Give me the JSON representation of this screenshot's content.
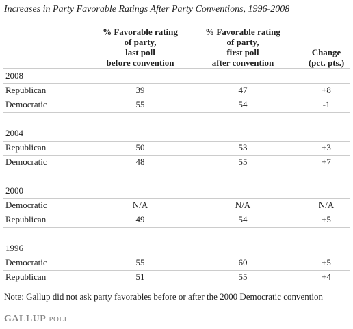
{
  "header": {
    "title": "Increases in Party Favorable Ratings After Party Conventions, 1996-2008"
  },
  "table": {
    "columns": [
      [
        "% Favorable rating",
        "of party,",
        "last poll",
        "before convention"
      ],
      [
        "% Favorable rating",
        "of party,",
        "first poll",
        "after convention"
      ],
      [
        "Change",
        "(pct. pts.)"
      ]
    ],
    "groups": [
      {
        "year": "2008",
        "rows": [
          [
            "Republican",
            39,
            47,
            "+8"
          ],
          [
            "Democratic",
            55,
            54,
            "-1"
          ]
        ]
      },
      {
        "year": "2004",
        "rows": [
          [
            "Republican",
            50,
            53,
            "+3"
          ],
          [
            "Democratic",
            48,
            55,
            "+7"
          ]
        ]
      },
      {
        "year": "2000",
        "rows": [
          [
            "Democratic",
            "N/A",
            "N/A",
            "N/A"
          ],
          [
            "Republican",
            49,
            54,
            "+5"
          ]
        ]
      },
      {
        "year": "1996",
        "rows": [
          [
            "Democratic",
            55,
            60,
            "+5"
          ],
          [
            "Republican",
            51,
            55,
            "+4"
          ]
        ]
      }
    ]
  },
  "note": "Note: Gallup did not ask party favorables before or after the 2000 Democratic convention",
  "footer": {
    "logo_main": "GALLUP",
    "logo_sub": "POLL"
  }
}
